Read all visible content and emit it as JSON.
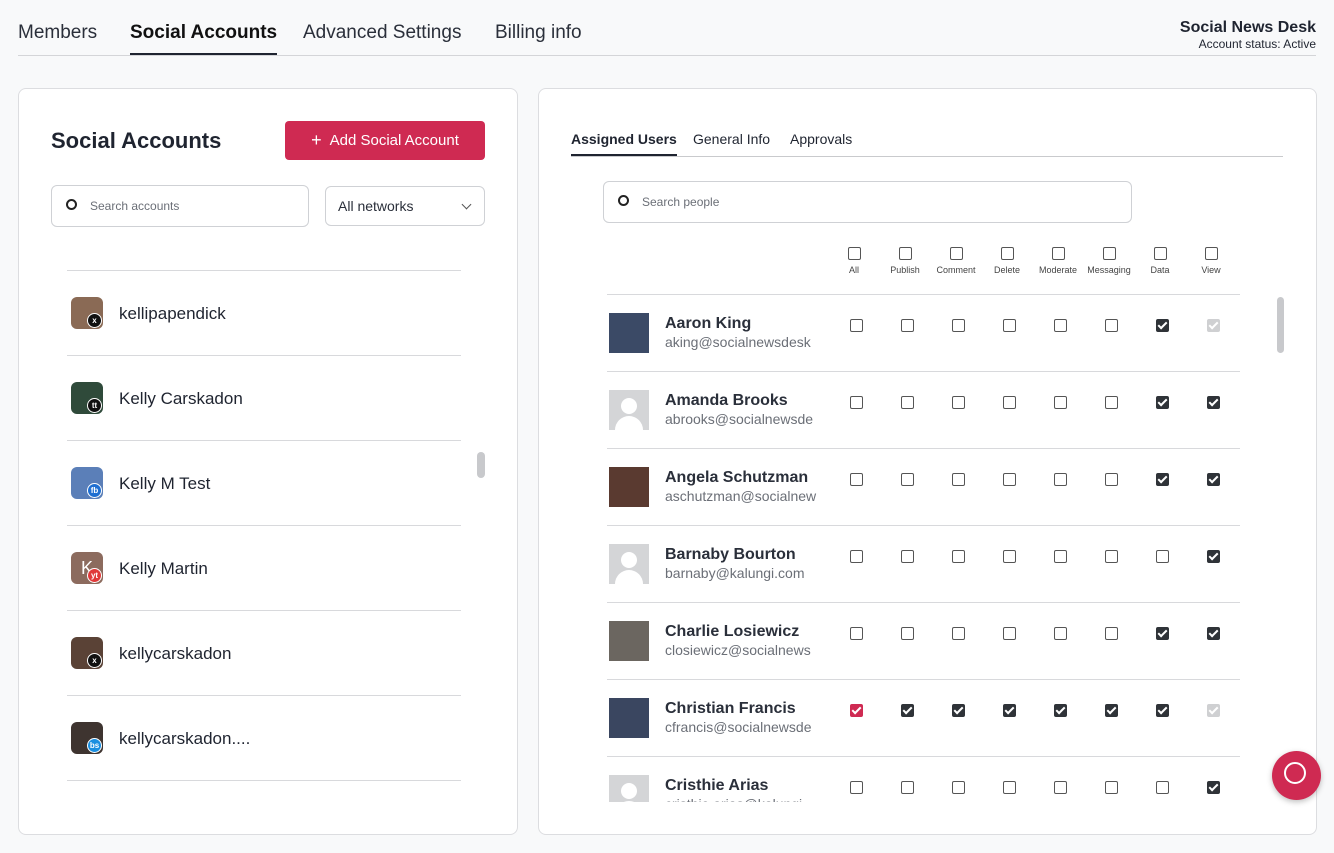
{
  "nav": {
    "tabs": [
      "Members",
      "Social Accounts",
      "Advanced Settings",
      "Billing info"
    ],
    "active": 1
  },
  "org": {
    "name": "Social News Desk",
    "status": "Account status: Active"
  },
  "accounts_panel": {
    "title": "Social Accounts",
    "add_button": "Add Social Account",
    "search_placeholder": "Search accounts",
    "network_filter": "All networks",
    "accounts": [
      {
        "name": "kellipapendick",
        "network": "x"
      },
      {
        "name": "Kelly Carskadon",
        "network": "tt"
      },
      {
        "name": "Kelly M Test",
        "network": "fb"
      },
      {
        "name": "Kelly Martin",
        "network": "yt",
        "initial": "K"
      },
      {
        "name": "kellycarskadon",
        "network": "x"
      },
      {
        "name": "kellycarskadon....",
        "network": "bs"
      }
    ]
  },
  "detail_panel": {
    "tabs": [
      "Assigned Users",
      "General Info",
      "Approvals"
    ],
    "active": 0,
    "search_placeholder": "Search people",
    "permissions": [
      "All",
      "Publish",
      "Comment",
      "Delete",
      "Moderate",
      "Messaging",
      "Data",
      "View"
    ],
    "users": [
      {
        "name": "Aaron King",
        "email": "aking@socialnewsdesk",
        "granted": [
          false,
          false,
          false,
          false,
          false,
          false,
          true,
          true
        ],
        "view_locked": true
      },
      {
        "name": "Amanda Brooks",
        "email": "abrooks@socialnewsde",
        "granted": [
          false,
          false,
          false,
          false,
          false,
          false,
          true,
          true
        ],
        "placeholder_avatar": true
      },
      {
        "name": "Angela Schutzman",
        "email": "aschutzman@socialnew",
        "granted": [
          false,
          false,
          false,
          false,
          false,
          false,
          true,
          true
        ]
      },
      {
        "name": "Barnaby Bourton",
        "email": "barnaby@kalungi.com",
        "granted": [
          false,
          false,
          false,
          false,
          false,
          false,
          false,
          true
        ],
        "placeholder_avatar": true
      },
      {
        "name": "Charlie Losiewicz",
        "email": "closiewicz@socialnews",
        "granted": [
          false,
          false,
          false,
          false,
          false,
          false,
          true,
          true
        ]
      },
      {
        "name": "Christian Francis",
        "email": "cfrancis@socialnewsde",
        "granted": [
          true,
          true,
          true,
          true,
          true,
          true,
          true,
          true
        ],
        "view_locked": true
      },
      {
        "name": "Cristhie Arias",
        "email": "cristhie.arias@kalungi",
        "granted": [
          false,
          false,
          false,
          false,
          false,
          false,
          false,
          true
        ],
        "placeholder_avatar": true
      }
    ]
  }
}
